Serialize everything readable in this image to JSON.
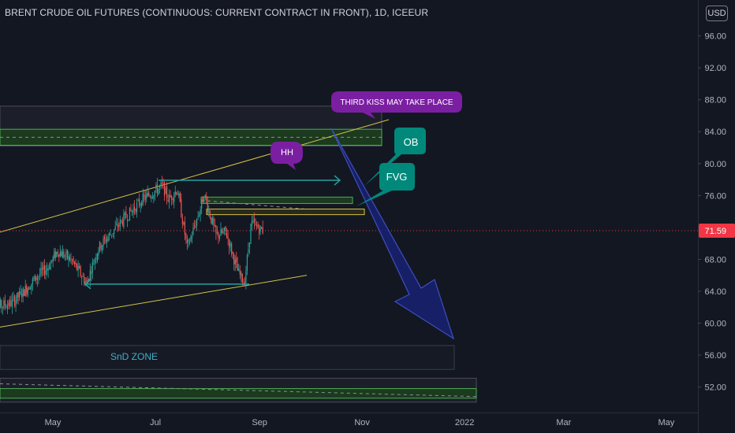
{
  "title": "BRENT CRUDE OIL FUTURES (CONTINUOUS: CURRENT CONTRACT IN FRONT), 1D, ICEEUR",
  "currency_button": "USD",
  "colors": {
    "background": "#131722",
    "up": "#26a69a",
    "down": "#ef5350",
    "last_price": "#f23645",
    "trendline": "#d4c34a",
    "zone_line": "#4caf50",
    "teal_arrow": "#22a3a0",
    "callout_purple": "#7b1fa2",
    "callout_teal": "#00897b",
    "projection": "#1a237e"
  },
  "chart_data": {
    "type": "candlestick",
    "title": "BRENT CRUDE OIL FUTURES (CONTINUOUS: CURRENT CONTRACT IN FRONT), 1D, ICEEUR",
    "y_ticks": [
      "96.00",
      "92.00",
      "88.00",
      "84.00",
      "80.00",
      "76.00",
      "72.00",
      "68.00",
      "64.00",
      "60.00",
      "56.00",
      "52.00"
    ],
    "ylim": [
      48.8,
      100.5
    ],
    "x_ticks": [
      "May",
      "Jul",
      "Sep",
      "Nov",
      "2022",
      "Mar",
      "May"
    ],
    "last_price": "71.59",
    "close_path": [
      {
        "date": "2021-03-25",
        "close": 61.9
      },
      {
        "date": "2021-04-06",
        "close": 62.5
      },
      {
        "date": "2021-04-12",
        "close": 63.6
      },
      {
        "date": "2021-04-22",
        "close": 65.9
      },
      {
        "date": "2021-04-28",
        "close": 67.0
      },
      {
        "date": "2021-05-04",
        "close": 69.1
      },
      {
        "date": "2021-05-12",
        "close": 67.9
      },
      {
        "date": "2021-05-21",
        "close": 65.0
      },
      {
        "date": "2021-05-28",
        "close": 69.4
      },
      {
        "date": "2021-06-11",
        "close": 72.8
      },
      {
        "date": "2021-06-24",
        "close": 75.6
      },
      {
        "date": "2021-07-05",
        "close": 77.2
      },
      {
        "date": "2021-07-09",
        "close": 75.5
      },
      {
        "date": "2021-07-14",
        "close": 76.8
      },
      {
        "date": "2021-07-20",
        "close": 69.4
      },
      {
        "date": "2021-07-28",
        "close": 74.5
      },
      {
        "date": "2021-07-30",
        "close": 76.2
      },
      {
        "date": "2021-08-06",
        "close": 71.0
      },
      {
        "date": "2021-08-12",
        "close": 71.4
      },
      {
        "date": "2021-08-19",
        "close": 66.5
      },
      {
        "date": "2021-08-23",
        "close": 65.0
      },
      {
        "date": "2021-08-27",
        "close": 72.5
      },
      {
        "date": "2021-09-03",
        "close": 71.59
      }
    ],
    "annotations": [
      {
        "type": "text",
        "text": "THIRD KISS MAY TAKE PLACE"
      },
      {
        "type": "text",
        "text": "HH"
      },
      {
        "type": "text",
        "text": "OB"
      },
      {
        "type": "text",
        "text": "FVG"
      },
      {
        "type": "text",
        "text": "SnD ZONE"
      }
    ]
  }
}
